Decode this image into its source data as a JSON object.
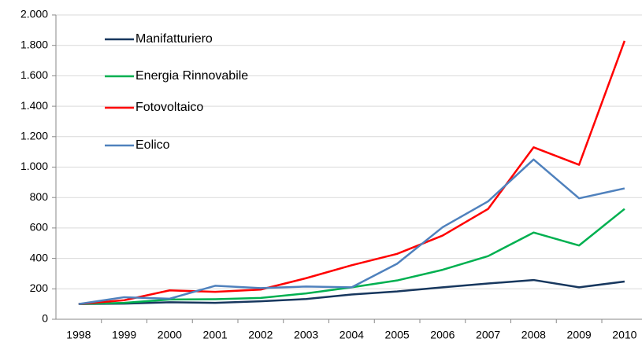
{
  "chart_data": {
    "type": "line",
    "categories": [
      "1998",
      "1999",
      "2000",
      "2001",
      "2002",
      "2003",
      "2004",
      "2005",
      "2006",
      "2007",
      "2008",
      "2009",
      "2010"
    ],
    "series": [
      {
        "name": "Manifatturiero",
        "color": "#17375e",
        "values": [
          100,
          103,
          112,
          108,
          118,
          133,
          163,
          183,
          210,
          235,
          258,
          210,
          248
        ]
      },
      {
        "name": "Energia Rinnovabile",
        "color": "#00b050",
        "values": [
          100,
          108,
          130,
          132,
          140,
          170,
          210,
          255,
          325,
          415,
          570,
          485,
          725
        ]
      },
      {
        "name": "Fotovoltaico",
        "color": "#ff0000",
        "values": [
          100,
          125,
          190,
          180,
          195,
          270,
          355,
          430,
          550,
          725,
          1130,
          1015,
          1830
        ]
      },
      {
        "name": "Eolico",
        "color": "#4f81bd",
        "values": [
          100,
          145,
          135,
          220,
          205,
          215,
          210,
          365,
          605,
          775,
          1050,
          795,
          860
        ]
      }
    ],
    "ylim": [
      0,
      2000
    ],
    "yticks": [
      0,
      200,
      400,
      600,
      800,
      {
        "value": 1000,
        "label": "1.000"
      },
      {
        "value": 1200,
        "label": "1.200"
      },
      {
        "value": 1400,
        "label": "1.400"
      },
      {
        "value": 1600,
        "label": "1.600"
      },
      {
        "value": 1800,
        "label": "1.800"
      },
      {
        "value": 2000,
        "label": "2.000"
      }
    ],
    "grid": true
  }
}
